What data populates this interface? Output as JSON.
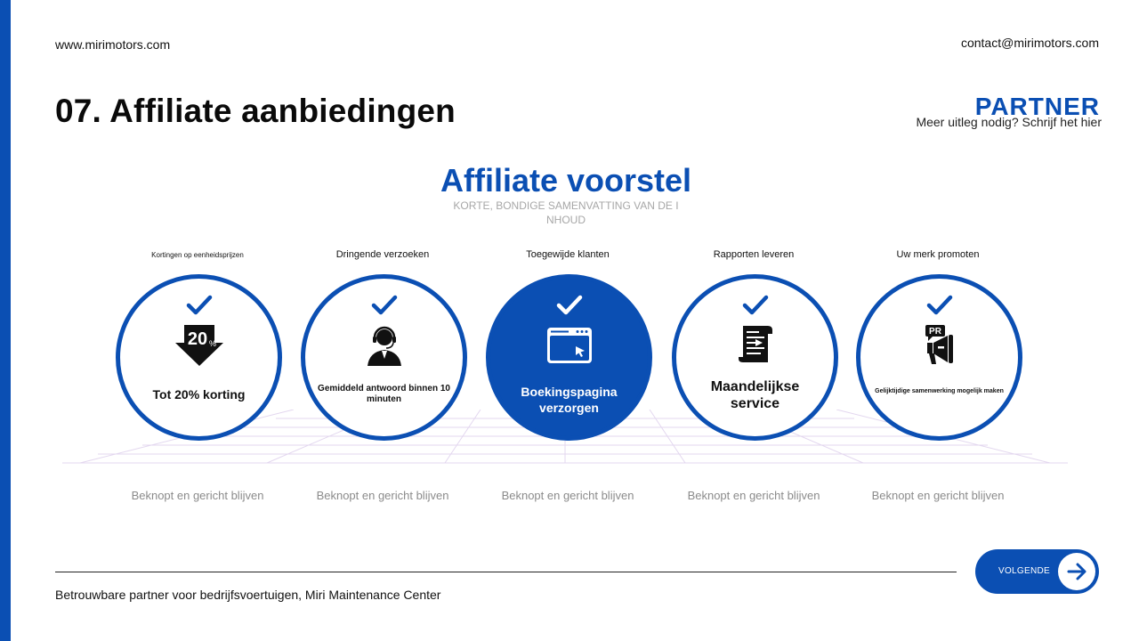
{
  "header": {
    "website": "www.mirimotors.com",
    "email": "contact@mirimotors.com",
    "section_title": "07. Affiliate aanbiedingen",
    "brand": "PARTNER",
    "brand_subtitle": "Meer uitleg nodig? Schrijf het hier"
  },
  "hero": {
    "title": "Affiliate voorstel",
    "summary": "KORTE, BONDIGE SAMENVATTING VAN DE I NHOUD"
  },
  "cards": [
    {
      "title": "Kortingen op eenheidsprijzen",
      "label": "Tot 20% korting",
      "icon": "discount-20-icon",
      "badge": "20",
      "desc": "Beknopt en gericht blijven"
    },
    {
      "title": "Dringende verzoeken",
      "label": "Gemiddeld antwoord binnen 10 minuten",
      "icon": "support-agent-icon",
      "desc": "Beknopt en gericht blijven"
    },
    {
      "title": "Toegewijde klanten",
      "label": "Boekingspagina verzorgen",
      "icon": "browser-click-icon",
      "desc": "Beknopt en gericht blijven"
    },
    {
      "title": "Rapporten leveren",
      "label": "Maandelijkse service",
      "icon": "report-document-icon",
      "desc": "Beknopt en gericht blijven"
    },
    {
      "title": "Uw merk promoten",
      "label": "Gelijktijdige samenwerking mogelijk maken",
      "icon": "pr-megaphone-icon",
      "badge": "PR",
      "desc": "Beknopt en gericht blijven"
    }
  ],
  "footer": {
    "tagline": "Betrouwbare partner voor bedrijfsvoertuigen, Miri Maintenance Center",
    "next_label": "VOLGENDE"
  },
  "colors": {
    "accent": "#0b4fb3",
    "muted": "#8b8b8b"
  }
}
